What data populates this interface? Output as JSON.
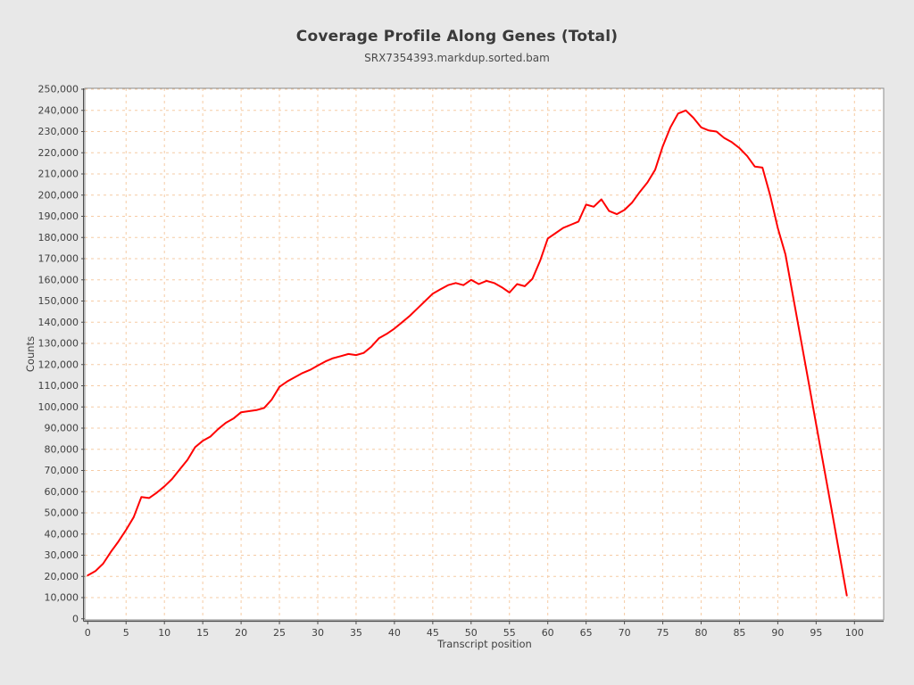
{
  "page": {
    "background": "#e8e8e8"
  },
  "header": {
    "title": "Coverage Profile Along Genes (Total)",
    "subtitle": "SRX7354393.markdup.sorted.bam"
  },
  "chart_data": {
    "type": "line",
    "title": "Coverage Profile Along Genes (Total)",
    "subtitle": "SRX7354393.markdup.sorted.bam",
    "xlabel": "Transcript position",
    "ylabel": "Counts",
    "xlim": [
      0,
      104
    ],
    "ylim": [
      0,
      250000
    ],
    "x_ticks": [
      0,
      5,
      10,
      15,
      20,
      25,
      30,
      35,
      40,
      45,
      50,
      55,
      60,
      65,
      70,
      75,
      80,
      85,
      90,
      95,
      100
    ],
    "y_ticks": [
      0,
      10000,
      20000,
      30000,
      40000,
      50000,
      60000,
      70000,
      80000,
      90000,
      100000,
      110000,
      120000,
      130000,
      140000,
      150000,
      160000,
      170000,
      180000,
      190000,
      200000,
      210000,
      220000,
      230000,
      240000,
      250000
    ],
    "grid": true,
    "legend": "none",
    "line_color": "#ff0000",
    "grid_color": "#f6cba4",
    "plot_background": "#ffffff",
    "frame_color": "#8c8c8c",
    "x": [
      0,
      1,
      2,
      3,
      4,
      5,
      6,
      7,
      8,
      9,
      10,
      11,
      12,
      13,
      14,
      15,
      16,
      17,
      18,
      19,
      20,
      21,
      22,
      23,
      24,
      25,
      26,
      27,
      28,
      29,
      30,
      31,
      32,
      33,
      34,
      35,
      36,
      37,
      38,
      39,
      40,
      41,
      42,
      43,
      44,
      45,
      46,
      47,
      48,
      49,
      50,
      51,
      52,
      53,
      54,
      55,
      56,
      57,
      58,
      59,
      60,
      61,
      62,
      63,
      64,
      65,
      66,
      67,
      68,
      69,
      70,
      71,
      72,
      73,
      74,
      75,
      76,
      77,
      78,
      79,
      80,
      81,
      82,
      83,
      84,
      85,
      86,
      87,
      88,
      89,
      90,
      91,
      92,
      93,
      94,
      95,
      96,
      97,
      98,
      99
    ],
    "counts": [
      20500,
      22500,
      26000,
      31500,
      36500,
      42000,
      48000,
      57500,
      57000,
      59500,
      62500,
      66000,
      70500,
      75000,
      81000,
      84000,
      86000,
      89500,
      92500,
      94500,
      97500,
      98000,
      98500,
      99500,
      103500,
      109500,
      112000,
      114000,
      116000,
      117500,
      119500,
      121500,
      123000,
      124000,
      125000,
      124500,
      125500,
      128500,
      132500,
      134500,
      137000,
      140000,
      143000,
      146500,
      150000,
      153500,
      155500,
      157500,
      158500,
      157500,
      160000,
      158000,
      159500,
      158500,
      156500,
      154000,
      158000,
      157000,
      160500,
      169000,
      179500,
      182000,
      184500,
      186000,
      187500,
      195500,
      194500,
      198000,
      192500,
      191000,
      193000,
      196500,
      201500,
      206000,
      212000,
      223000,
      232000,
      238500,
      240000,
      236500,
      232000,
      230500,
      230000,
      227000,
      225000,
      222200,
      218500,
      213500,
      213000,
      200000,
      184500,
      172000,
      152000,
      132000,
      112000,
      92000,
      72000,
      52000,
      31500,
      11000
    ]
  }
}
